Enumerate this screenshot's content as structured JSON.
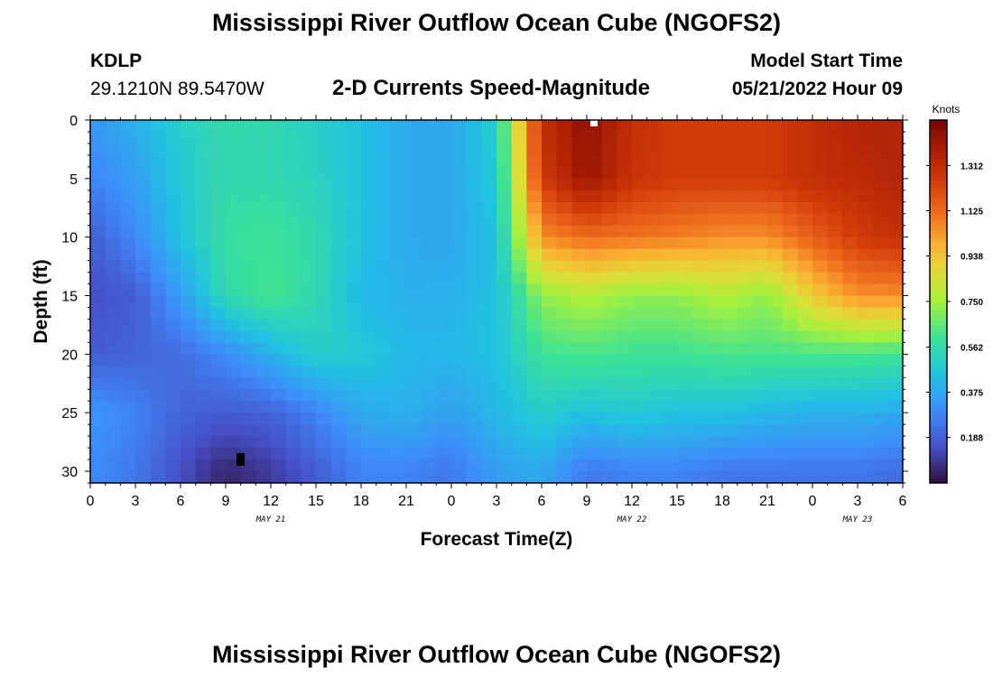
{
  "header": {
    "title": "Mississippi River Outflow Ocean Cube (NGOFS2)",
    "station_id": "KDLP",
    "coordinates": "29.1210N  89.5470W",
    "subtitle": "2-D Currents Speed-Magnitude",
    "model_start_label": "Model Start Time",
    "model_start_value": "05/21/2022 Hour 09"
  },
  "footer": {
    "title": "Mississippi River Outflow Ocean Cube (NGOFS2)"
  },
  "chart_data": {
    "type": "heatmap",
    "xlabel": "Forecast Time(Z)",
    "ylabel": "Depth (ft)",
    "x_range_hours": [
      0,
      54
    ],
    "y_range_ft": [
      0,
      31
    ],
    "y_inverted": true,
    "x_tick_labels": [
      "0",
      "3",
      "6",
      "9",
      "12",
      "15",
      "18",
      "21",
      "0",
      "3",
      "6",
      "9",
      "12",
      "15",
      "18",
      "21",
      "0",
      "3",
      "6"
    ],
    "y_tick_labels": [
      "0",
      "5",
      "10",
      "15",
      "20",
      "25",
      "30"
    ],
    "y_tick_values": [
      0,
      5,
      10,
      15,
      20,
      25,
      30
    ],
    "date_labels": [
      {
        "label": "MAY 21",
        "hour": 12
      },
      {
        "label": "MAY 22",
        "hour": 36
      },
      {
        "label": "MAY 23",
        "hour": 51
      }
    ],
    "colorbar": {
      "unit": "Knots",
      "range": [
        0,
        1.5
      ],
      "labels": [
        "1.312",
        "1.125",
        "0.938",
        "0.750",
        "0.562",
        "0.375",
        "0.188"
      ],
      "values": [
        1.312,
        1.125,
        0.938,
        0.75,
        0.562,
        0.375,
        0.188
      ]
    },
    "grid_hours": [
      0,
      3,
      6,
      9,
      12,
      15,
      18,
      21,
      24,
      27,
      30,
      33,
      36,
      39,
      42,
      45,
      48,
      51,
      54
    ],
    "grid_depths_ft": [
      0,
      5,
      10,
      15,
      20,
      25,
      30
    ],
    "speed_knots": [
      [
        0.33,
        0.4,
        0.5,
        0.56,
        0.55,
        0.5,
        0.45,
        0.38,
        0.37,
        0.5,
        1.3,
        1.45,
        1.3,
        1.25,
        1.25,
        1.25,
        1.3,
        1.35,
        1.35
      ],
      [
        0.28,
        0.35,
        0.48,
        0.55,
        0.55,
        0.52,
        0.45,
        0.38,
        0.37,
        0.48,
        1.25,
        1.42,
        1.28,
        1.25,
        1.25,
        1.25,
        1.3,
        1.32,
        1.35
      ],
      [
        0.18,
        0.3,
        0.45,
        0.58,
        0.6,
        0.55,
        0.45,
        0.38,
        0.37,
        0.45,
        1.05,
        1.12,
        1.1,
        1.08,
        1.05,
        1.05,
        1.15,
        1.25,
        1.3
      ],
      [
        0.15,
        0.18,
        0.35,
        0.55,
        0.62,
        0.55,
        0.42,
        0.4,
        0.4,
        0.45,
        0.72,
        0.78,
        0.72,
        0.72,
        0.78,
        0.72,
        0.92,
        1.05,
        1.05
      ],
      [
        0.18,
        0.2,
        0.22,
        0.3,
        0.4,
        0.5,
        0.48,
        0.42,
        0.42,
        0.45,
        0.6,
        0.62,
        0.6,
        0.6,
        0.62,
        0.62,
        0.62,
        0.62,
        0.6
      ],
      [
        0.33,
        0.28,
        0.2,
        0.18,
        0.2,
        0.28,
        0.38,
        0.4,
        0.35,
        0.42,
        0.5,
        0.45,
        0.48,
        0.45,
        0.45,
        0.42,
        0.4,
        0.4,
        0.38
      ],
      [
        0.3,
        0.25,
        0.15,
        0.05,
        0.1,
        0.18,
        0.28,
        0.28,
        0.25,
        0.35,
        0.38,
        0.25,
        0.28,
        0.28,
        0.25,
        0.25,
        0.25,
        0.25,
        0.22
      ]
    ]
  }
}
